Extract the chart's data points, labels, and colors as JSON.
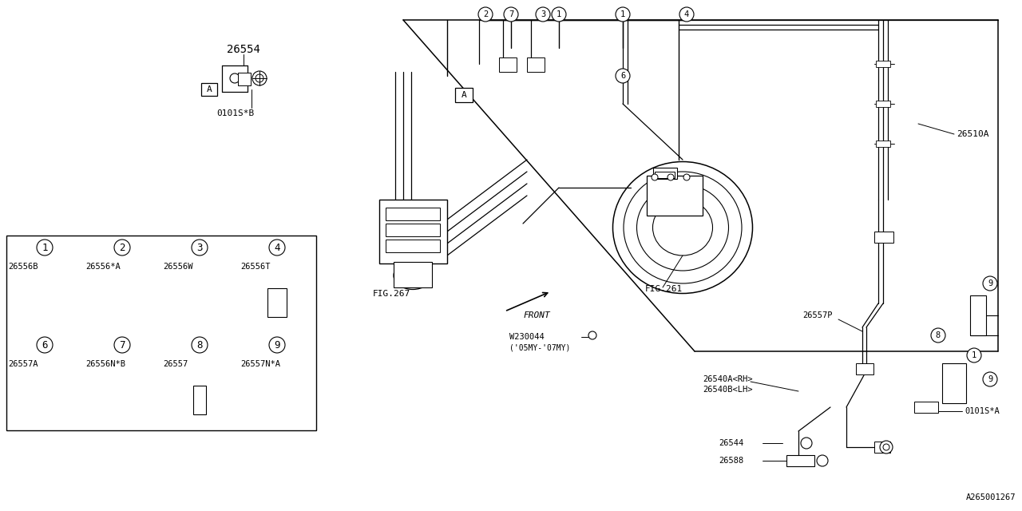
{
  "bg_color": "#ffffff",
  "line_color": "#000000",
  "fig_ref1": "FIG.267",
  "fig_ref2": "FIG.261",
  "part_26554": "26554",
  "part_0101SB": "0101S*B",
  "part_0101SA": "0101S*A",
  "part_26510A": "26510A",
  "part_26557P": "26557P",
  "part_W230044": "W230044",
  "part_note": "('05MY-'07MY)",
  "part_26540A": "26540A<RH>",
  "part_26540B": "26540B<LH>",
  "part_26544": "26544",
  "part_26588": "26588",
  "part_FRONT": "FRONT",
  "watermark": "A265001267",
  "nums_row1": [
    "1",
    "2",
    "3",
    "4"
  ],
  "nums_row2": [
    "6",
    "7",
    "8",
    "9"
  ],
  "parts_row1": [
    "26556B",
    "26556*A",
    "26556W",
    "26556T"
  ],
  "parts_row2": [
    "26557A",
    "26556N*B",
    "26557",
    "26557N*A"
  ]
}
